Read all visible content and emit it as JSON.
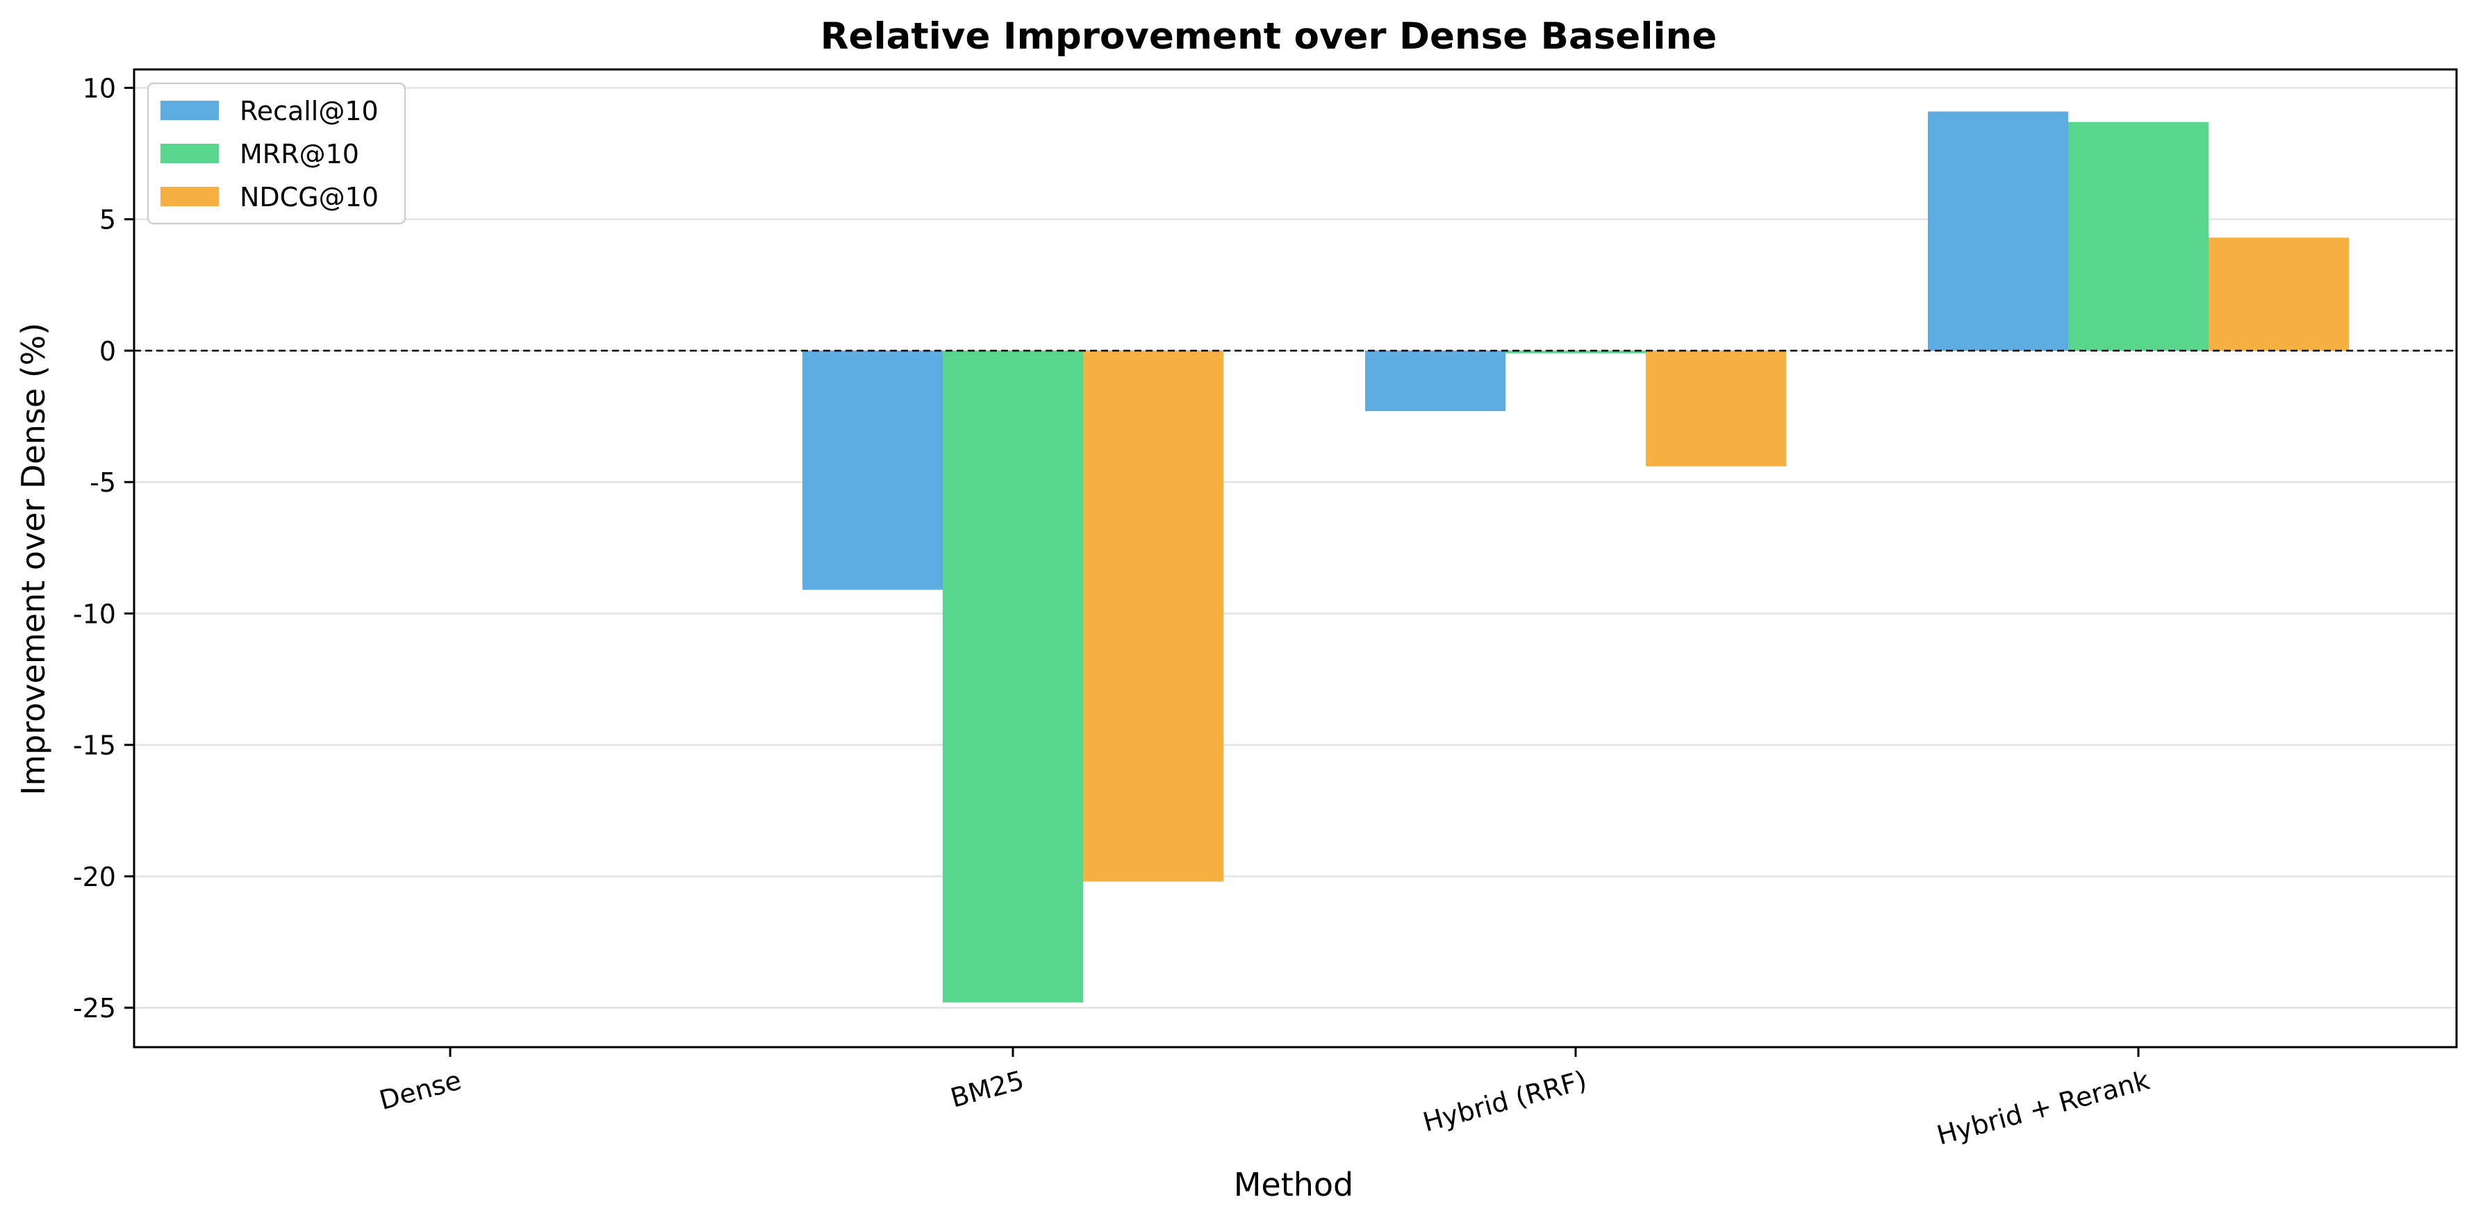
{
  "chart_data": {
    "type": "bar",
    "title": "Relative Improvement over Dense Baseline",
    "xlabel": "Method",
    "ylabel": "Improvement over Dense (%)",
    "categories": [
      "Dense",
      "BM25",
      "Hybrid (RRF)",
      "Hybrid + Rerank"
    ],
    "series": [
      {
        "name": "Recall@10",
        "color": "#5dade2",
        "values": [
          0,
          -9.1,
          -2.3,
          9.1
        ]
      },
      {
        "name": "MRR@10",
        "color": "#58d68d",
        "values": [
          0,
          -24.8,
          -0.1,
          8.7
        ]
      },
      {
        "name": "NDCG@10",
        "color": "#f5b041",
        "values": [
          0,
          -20.2,
          -4.4,
          4.3
        ]
      }
    ],
    "ylim": [
      -26.5,
      10.7
    ],
    "yticks": [
      10,
      5,
      0,
      -5,
      -10,
      -15,
      -20,
      -25
    ],
    "grid": "horizontal",
    "legend_position": "top-left",
    "baseline": 0
  }
}
